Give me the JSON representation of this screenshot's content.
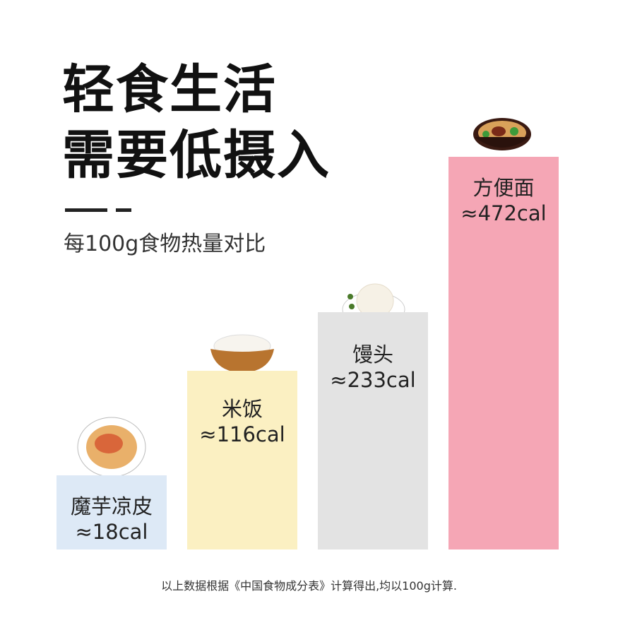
{
  "header": {
    "title": [
      "轻食生活",
      "需要低摄入"
    ],
    "subtitle": "每100g食物热量对比"
  },
  "items": [
    {
      "name": "魔芋凉皮",
      "calories": "≈18cal"
    },
    {
      "name": "米饭",
      "calories": "≈116cal"
    },
    {
      "name": "馒头",
      "calories": "≈233cal"
    },
    {
      "name": "方便面",
      "calories": "≈472cal"
    }
  ],
  "footnote": "以上数据根据《中国食物成分表》计算得出,均以100g计算."
}
